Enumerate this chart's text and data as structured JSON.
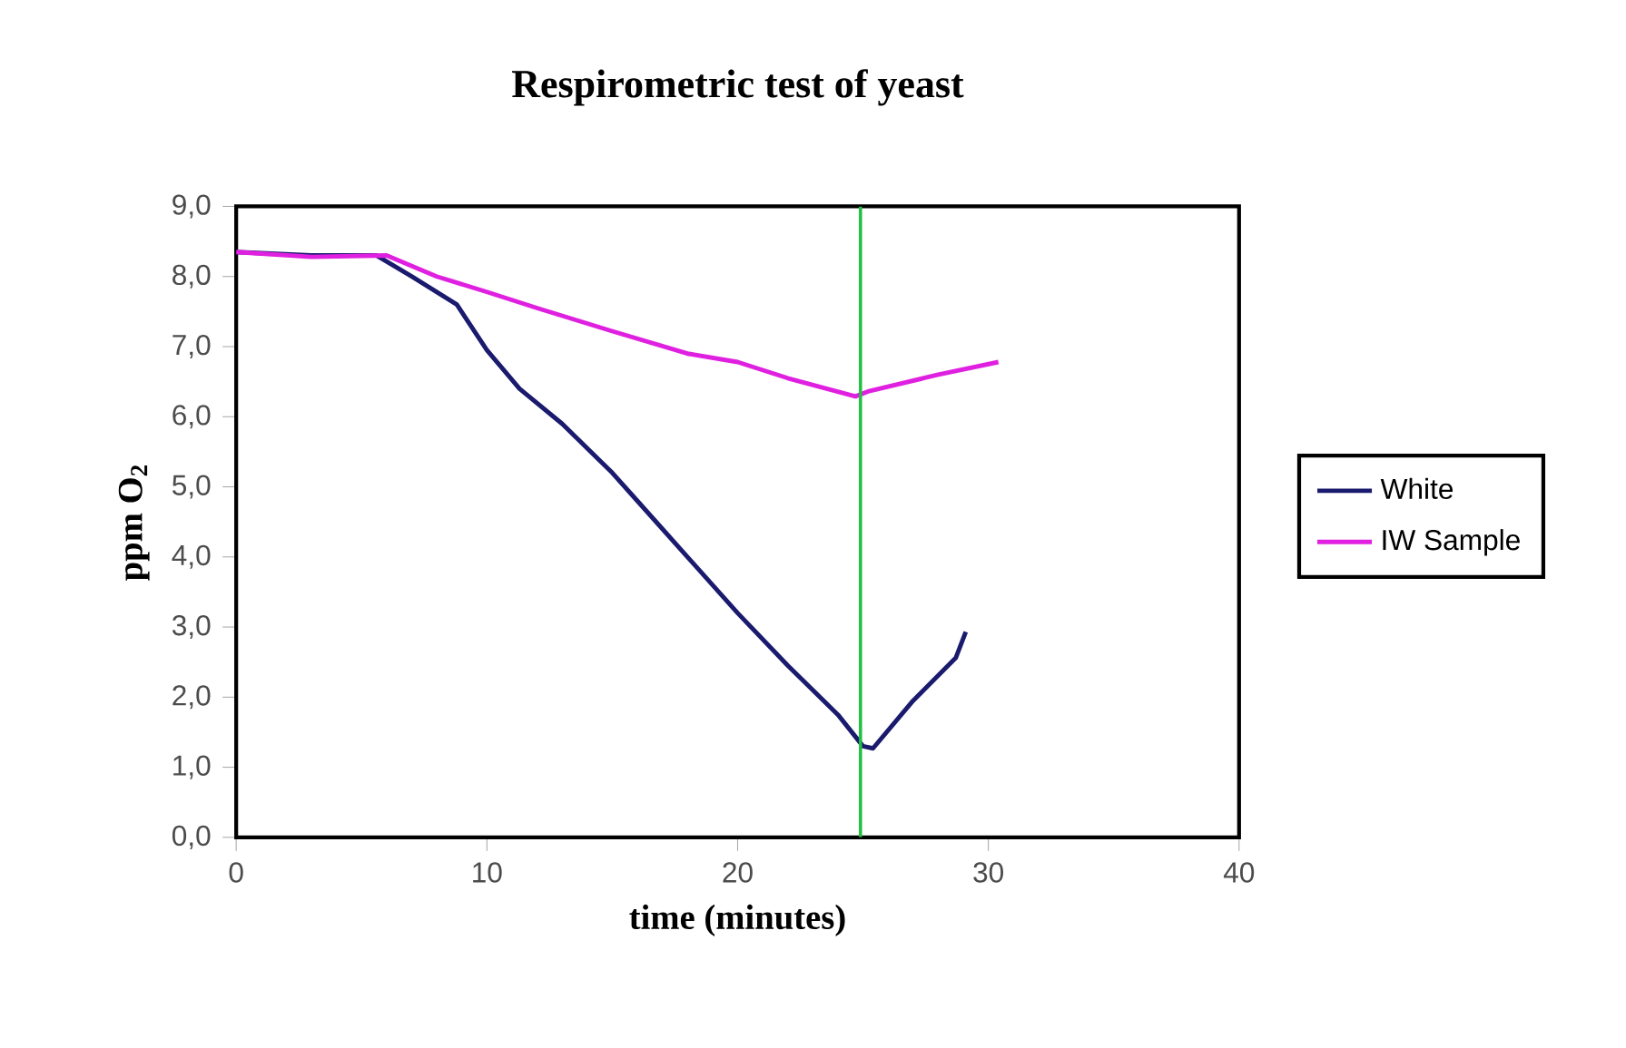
{
  "chart_data": {
    "type": "line",
    "title": "Respirometric test  of yeast",
    "xlabel": "time (minutes)",
    "ylabel": "ppm O$_{2}$",
    "xlim": [
      0,
      40
    ],
    "xticks": [
      0,
      10,
      20,
      30,
      40
    ],
    "ylim": [
      0,
      9
    ],
    "yticks": [
      {
        "value": 0,
        "label": "0,0"
      },
      {
        "value": 1,
        "label": "1,0"
      },
      {
        "value": 2,
        "label": "2,0"
      },
      {
        "value": 3,
        "label": "3,0"
      },
      {
        "value": 4,
        "label": "4,0"
      },
      {
        "value": 5,
        "label": "5,0"
      },
      {
        "value": 6,
        "label": "6,0"
      },
      {
        "value": 7,
        "label": "7,0"
      },
      {
        "value": 8,
        "label": "8,0"
      },
      {
        "value": 9,
        "label": "9,0"
      }
    ],
    "series": [
      {
        "name": "White",
        "color": "#1a1a6e",
        "x": [
          0,
          3,
          5.6,
          7,
          8.8,
          10,
          11.3,
          13,
          15,
          16,
          18,
          20,
          22,
          24,
          25,
          25.4,
          27,
          28.7,
          29.1
        ],
        "values": [
          8.35,
          8.3,
          8.3,
          8.0,
          7.6,
          6.95,
          6.4,
          5.9,
          5.2,
          4.8,
          4.0,
          3.2,
          2.45,
          1.75,
          1.3,
          1.27,
          1.95,
          2.56,
          2.93
        ]
      },
      {
        "name": "IW Sample",
        "color": "#e020e0",
        "x": [
          0,
          3,
          6,
          8,
          10,
          12,
          15,
          18,
          20,
          22,
          24.7,
          25.2,
          28,
          30.4
        ],
        "values": [
          8.35,
          8.28,
          8.3,
          8.0,
          7.78,
          7.55,
          7.22,
          6.9,
          6.78,
          6.55,
          6.29,
          6.36,
          6.6,
          6.78
        ]
      }
    ],
    "ref_lines": [
      {
        "axis": "x",
        "value": 24.9,
        "color": "#20c040"
      }
    ],
    "legend": "right",
    "grid": false,
    "marker": "none",
    "line_style": "solid"
  }
}
